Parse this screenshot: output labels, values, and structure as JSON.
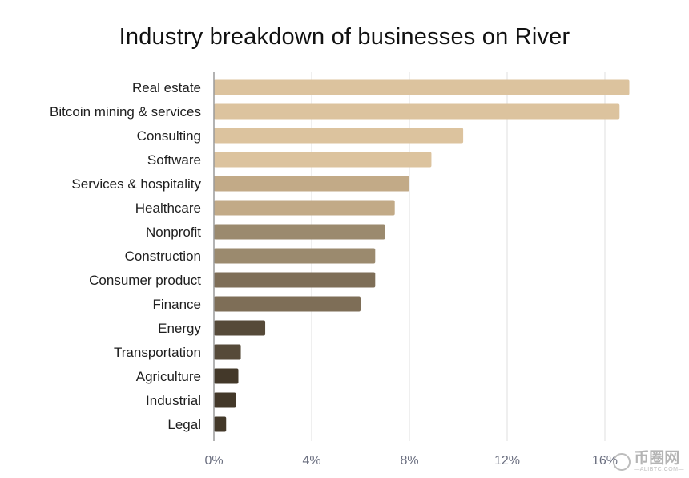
{
  "chart_data": {
    "type": "bar",
    "orientation": "horizontal",
    "title": "Industry breakdown of businesses on River",
    "categories": [
      "Real estate",
      "Bitcoin mining & services",
      "Consulting",
      "Software",
      "Services & hospitality",
      "Healthcare",
      "Nonprofit",
      "Construction",
      "Consumer product",
      "Finance",
      "Energy",
      "Transportation",
      "Agriculture",
      "Industrial",
      "Legal"
    ],
    "values": [
      17.0,
      16.6,
      10.2,
      8.9,
      8.0,
      7.4,
      7.0,
      6.6,
      6.6,
      6.0,
      2.1,
      1.1,
      1.0,
      0.9,
      0.5
    ],
    "colors": [
      "#dcc39e",
      "#dcc39e",
      "#dcc39e",
      "#dcc39e",
      "#c2aa87",
      "#c2aa87",
      "#9b8a6e",
      "#9b8a6e",
      "#7e6e57",
      "#7e6e57",
      "#564a39",
      "#564a39",
      "#433829",
      "#433829",
      "#433829"
    ],
    "xticks": [
      0,
      4,
      8,
      12,
      16
    ],
    "xtick_labels": [
      "0%",
      "4%",
      "8%",
      "12%",
      "16%"
    ],
    "xlim": [
      0,
      17.2
    ],
    "grid": true,
    "xlabel": "",
    "ylabel": ""
  },
  "watermark": {
    "main": "币圈网",
    "sub": "—ALIBTC.COM—"
  }
}
